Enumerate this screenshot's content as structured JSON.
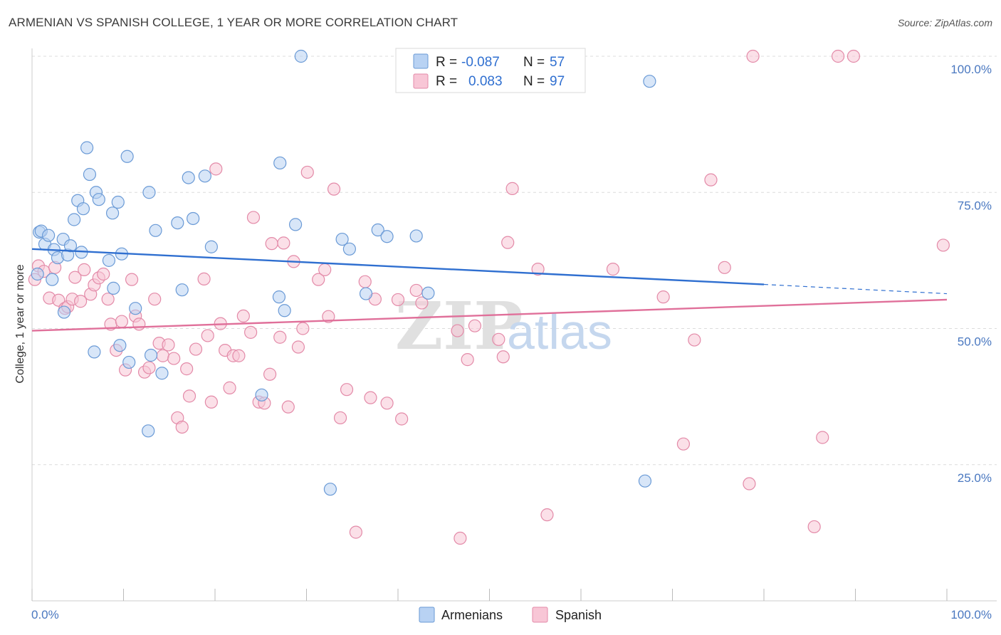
{
  "header": {
    "title": "ARMENIAN VS SPANISH COLLEGE, 1 YEAR OR MORE CORRELATION CHART",
    "source": "Source: ZipAtlas.com"
  },
  "watermark": {
    "zip": "ZIP",
    "atlas": "atlas"
  },
  "colors": {
    "blue_fill": "#b8d2f3",
    "blue_stroke": "#6a9ad6",
    "blue_line": "#2f6fd0",
    "pink_fill": "#f8c6d6",
    "pink_stroke": "#e38aa8",
    "pink_line": "#e0709a",
    "grid": "#dcdcdc",
    "axis_text": "#4a78c0"
  },
  "legend": {
    "rows": [
      {
        "r_label": "R =",
        "r_value": "-0.087",
        "n_label": "N =",
        "n_value": "57"
      },
      {
        "r_label": "R =",
        "r_value": "0.083",
        "n_label": "N =",
        "n_value": "97"
      }
    ]
  },
  "bottom_legend": {
    "items": [
      "Armenians",
      "Spanish"
    ]
  },
  "chart_data": {
    "type": "scatter",
    "title": "ARMENIAN VS SPANISH COLLEGE, 1 YEAR OR MORE CORRELATION CHART",
    "xlabel": "",
    "ylabel": "College, 1 year or more",
    "xlim": [
      0,
      100
    ],
    "ylim": [
      0,
      100
    ],
    "x_tick_labels": [
      "0.0%",
      "100.0%"
    ],
    "y_tick_labels": [
      "100.0%",
      "75.0%",
      "50.0%",
      "25.0%"
    ],
    "y_ticks": [
      100,
      75,
      50,
      25
    ],
    "series": [
      {
        "name": "Armenians",
        "R": -0.087,
        "N": 57,
        "trend": {
          "x0": 0,
          "y0": 64.6,
          "x1": 80,
          "y1": 58.1,
          "dash_to": 100,
          "dash_y": 56.4
        },
        "points": [
          [
            0.6,
            60.0
          ],
          [
            0.8,
            67.7
          ],
          [
            1.0,
            67.9
          ],
          [
            1.4,
            65.5
          ],
          [
            1.8,
            67.1
          ],
          [
            2.2,
            59.0
          ],
          [
            2.4,
            64.5
          ],
          [
            2.8,
            63.0
          ],
          [
            3.4,
            66.4
          ],
          [
            3.5,
            53.0
          ],
          [
            3.9,
            63.5
          ],
          [
            4.2,
            65.2
          ],
          [
            4.6,
            70.0
          ],
          [
            5.0,
            73.5
          ],
          [
            5.4,
            64.0
          ],
          [
            5.6,
            72.0
          ],
          [
            6.0,
            83.2
          ],
          [
            6.3,
            78.3
          ],
          [
            6.8,
            45.7
          ],
          [
            7.0,
            75.0
          ],
          [
            7.3,
            73.7
          ],
          [
            8.4,
            62.5
          ],
          [
            8.8,
            71.2
          ],
          [
            8.9,
            57.4
          ],
          [
            9.4,
            73.2
          ],
          [
            9.6,
            46.9
          ],
          [
            9.8,
            63.7
          ],
          [
            10.4,
            81.6
          ],
          [
            10.6,
            43.8
          ],
          [
            11.3,
            53.7
          ],
          [
            12.7,
            31.2
          ],
          [
            12.8,
            75.0
          ],
          [
            13.0,
            45.1
          ],
          [
            13.5,
            68.0
          ],
          [
            14.2,
            41.8
          ],
          [
            15.9,
            69.4
          ],
          [
            16.4,
            57.1
          ],
          [
            17.1,
            77.7
          ],
          [
            17.6,
            70.2
          ],
          [
            18.9,
            78.0
          ],
          [
            19.6,
            65.0
          ],
          [
            25.1,
            37.8
          ],
          [
            27.0,
            55.8
          ],
          [
            27.1,
            80.4
          ],
          [
            27.6,
            53.3
          ],
          [
            28.8,
            69.1
          ],
          [
            29.4,
            100.0
          ],
          [
            32.6,
            20.5
          ],
          [
            33.9,
            66.4
          ],
          [
            34.7,
            64.6
          ],
          [
            36.5,
            56.4
          ],
          [
            37.8,
            68.1
          ],
          [
            38.8,
            66.9
          ],
          [
            42.0,
            67.0
          ],
          [
            43.3,
            56.5
          ],
          [
            67.5,
            95.4
          ],
          [
            67.0,
            22.0
          ]
        ]
      },
      {
        "name": "Spanish",
        "R": 0.083,
        "N": 97,
        "trend": {
          "x0": 0,
          "y0": 49.6,
          "x1": 100,
          "y1": 55.3
        },
        "points": [
          [
            0.3,
            59.0
          ],
          [
            0.7,
            61.5
          ],
          [
            1.3,
            60.5
          ],
          [
            1.9,
            55.6
          ],
          [
            2.5,
            61.2
          ],
          [
            2.9,
            55.2
          ],
          [
            3.6,
            53.7
          ],
          [
            3.9,
            54.0
          ],
          [
            4.4,
            55.4
          ],
          [
            4.7,
            59.4
          ],
          [
            5.3,
            55.0
          ],
          [
            5.7,
            60.8
          ],
          [
            6.4,
            56.3
          ],
          [
            6.8,
            58.0
          ],
          [
            7.3,
            59.3
          ],
          [
            7.8,
            60.0
          ],
          [
            8.3,
            55.4
          ],
          [
            8.6,
            50.8
          ],
          [
            9.2,
            46.0
          ],
          [
            9.8,
            51.3
          ],
          [
            10.2,
            42.4
          ],
          [
            10.9,
            59.0
          ],
          [
            11.3,
            52.3
          ],
          [
            11.7,
            50.8
          ],
          [
            12.3,
            42.0
          ],
          [
            12.8,
            42.8
          ],
          [
            13.4,
            55.4
          ],
          [
            13.9,
            47.3
          ],
          [
            14.3,
            45.0
          ],
          [
            14.9,
            47.0
          ],
          [
            15.5,
            44.5
          ],
          [
            15.9,
            33.6
          ],
          [
            16.4,
            31.9
          ],
          [
            16.9,
            42.6
          ],
          [
            17.2,
            37.6
          ],
          [
            17.9,
            46.2
          ],
          [
            18.8,
            59.1
          ],
          [
            19.2,
            48.7
          ],
          [
            19.6,
            36.5
          ],
          [
            20.1,
            79.3
          ],
          [
            20.6,
            50.9
          ],
          [
            21.1,
            46.0
          ],
          [
            21.6,
            39.1
          ],
          [
            22.0,
            45.0
          ],
          [
            22.6,
            45.0
          ],
          [
            23.1,
            52.3
          ],
          [
            23.9,
            49.3
          ],
          [
            24.2,
            70.4
          ],
          [
            24.8,
            36.5
          ],
          [
            25.4,
            36.3
          ],
          [
            26.0,
            41.6
          ],
          [
            26.2,
            65.6
          ],
          [
            27.1,
            48.4
          ],
          [
            27.5,
            65.7
          ],
          [
            28.0,
            35.6
          ],
          [
            28.6,
            62.3
          ],
          [
            29.1,
            46.6
          ],
          [
            29.6,
            50.0
          ],
          [
            30.1,
            78.7
          ],
          [
            31.3,
            59.0
          ],
          [
            32.0,
            60.8
          ],
          [
            32.4,
            52.2
          ],
          [
            33.0,
            75.6
          ],
          [
            33.7,
            33.6
          ],
          [
            34.4,
            38.8
          ],
          [
            35.4,
            12.6
          ],
          [
            36.4,
            58.6
          ],
          [
            37.0,
            37.3
          ],
          [
            37.5,
            55.4
          ],
          [
            38.8,
            36.3
          ],
          [
            40.0,
            55.3
          ],
          [
            40.4,
            33.4
          ],
          [
            42.0,
            57.0
          ],
          [
            42.6,
            54.7
          ],
          [
            46.8,
            11.5
          ],
          [
            46.5,
            49.6
          ],
          [
            47.6,
            44.3
          ],
          [
            48.4,
            50.5
          ],
          [
            51.0,
            48.0
          ],
          [
            51.5,
            44.8
          ],
          [
            52.0,
            65.8
          ],
          [
            52.5,
            75.7
          ],
          [
            55.3,
            60.9
          ],
          [
            56.3,
            15.8
          ],
          [
            63.5,
            60.9
          ],
          [
            69.0,
            55.8
          ],
          [
            71.2,
            28.8
          ],
          [
            72.4,
            47.9
          ],
          [
            74.2,
            77.3
          ],
          [
            75.7,
            61.2
          ],
          [
            78.4,
            21.5
          ],
          [
            78.8,
            100.0
          ],
          [
            85.5,
            13.6
          ],
          [
            88.1,
            100.0
          ],
          [
            89.8,
            100.0
          ],
          [
            86.4,
            30.0
          ],
          [
            99.6,
            65.3
          ]
        ]
      }
    ]
  }
}
